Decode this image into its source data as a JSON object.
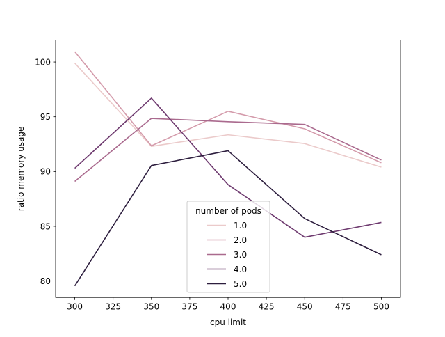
{
  "chart_data": {
    "type": "line",
    "title": "",
    "xlabel": "cpu limit",
    "ylabel": "ratio memory usage",
    "x": [
      300,
      350,
      400,
      450,
      500
    ],
    "xlim": [
      287.5,
      512.5
    ],
    "ylim": [
      78.5,
      102.0
    ],
    "xticks": [
      300,
      325,
      350,
      375,
      400,
      425,
      450,
      475,
      500
    ],
    "yticks": [
      80,
      85,
      90,
      95,
      100
    ],
    "grid": false,
    "legend": {
      "title": "number of pods",
      "placement": "lower-center"
    },
    "series": [
      {
        "name": "1.0",
        "color": "#ebcaca",
        "values": [
          99.9,
          92.3,
          93.35,
          92.55,
          90.4
        ]
      },
      {
        "name": "2.0",
        "color": "#d49bab",
        "values": [
          100.95,
          92.35,
          95.5,
          93.9,
          90.8
        ]
      },
      {
        "name": "3.0",
        "color": "#aa6a8e",
        "values": [
          89.1,
          94.85,
          94.55,
          94.3,
          91.05
        ]
      },
      {
        "name": "4.0",
        "color": "#6e3a6f",
        "values": [
          90.3,
          96.7,
          88.8,
          84.0,
          85.35
        ]
      },
      {
        "name": "5.0",
        "color": "#2d1e3e",
        "values": [
          79.55,
          90.55,
          91.9,
          85.7,
          82.4
        ]
      }
    ]
  }
}
